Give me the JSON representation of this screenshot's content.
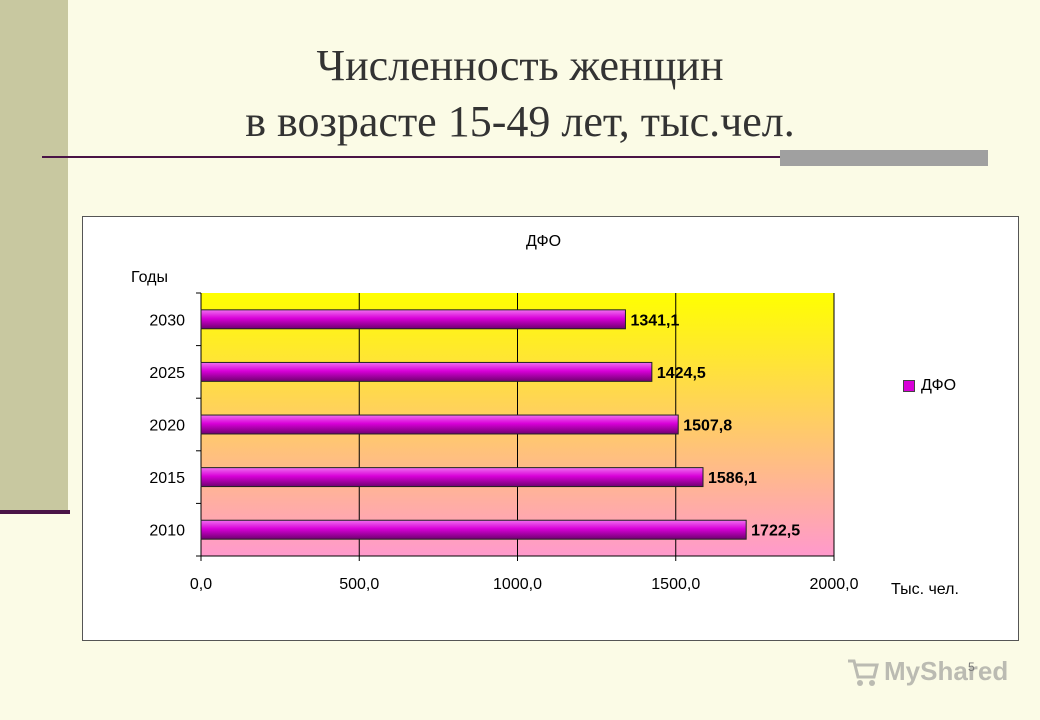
{
  "slide": {
    "title_line1": "Численность женщин",
    "title_line2": "в возрасте 15-49 лет, тыс.чел.",
    "page_number": "5",
    "watermark": "MyShared"
  },
  "chart_data": {
    "type": "bar",
    "orientation": "horizontal",
    "title": "ДФО",
    "ylabel": "Годы",
    "xlabel": "Тыс. чел.",
    "categories": [
      "2030",
      "2025",
      "2020",
      "2015",
      "2010"
    ],
    "series": [
      {
        "name": "ДФО",
        "values": [
          1341.1,
          1424.5,
          1507.8,
          1586.1,
          1722.5
        ],
        "color": "#d800d8"
      }
    ],
    "value_labels": [
      "1341,1",
      "1424,5",
      "1507,8",
      "1586,1",
      "1722,5"
    ],
    "xlim": [
      0,
      2000
    ],
    "xticks": [
      0,
      500,
      1000,
      1500,
      2000
    ],
    "xtick_labels": [
      "0,0",
      "500,0",
      "1000,0",
      "1500,0",
      "2000,0"
    ],
    "grid": "vertical",
    "legend": "right",
    "plot_background": [
      "#ffff00",
      "#ff99cc"
    ]
  }
}
